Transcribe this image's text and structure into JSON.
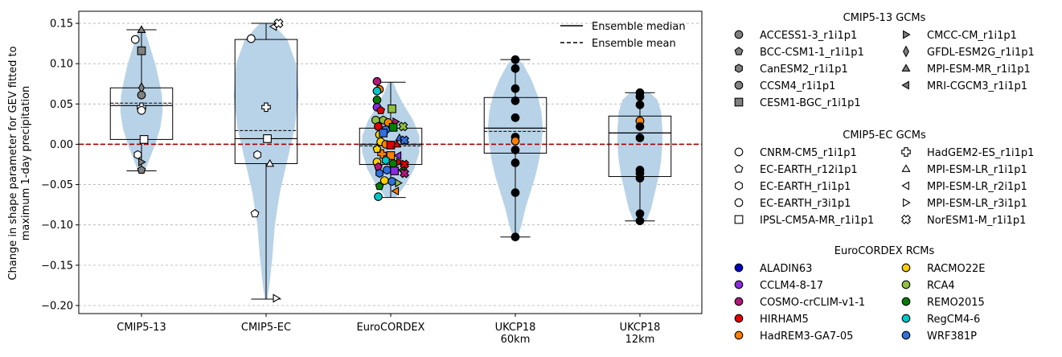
{
  "chart_data": {
    "type": "violin",
    "ylabel_line1": "Change in shape parameter for GEV fitted to",
    "ylabel_line2": "maximum 1-day precipitation",
    "ylim": [
      -0.21,
      0.165
    ],
    "yticks": [
      -0.2,
      -0.15,
      -0.1,
      -0.05,
      0.0,
      0.05,
      0.1,
      0.15
    ],
    "ytick_labels": [
      "−0.20",
      "−0.15",
      "−0.10",
      "−0.05",
      "0.00",
      "0.05",
      "0.10",
      "0.15"
    ],
    "grid": "horizontal dashed",
    "zero_line_color": "#a00000",
    "violin_color": "#b8d3e8",
    "categories": [
      "CMIP5-13",
      "CMIP5-EC",
      "EuroCORDEX",
      "UKCP18 60km",
      "UKCP18 12km"
    ],
    "category_label_lines": [
      [
        "CMIP5-13"
      ],
      [
        "CMIP5-EC"
      ],
      [
        "EuroCORDEX"
      ],
      [
        "UKCP18",
        "60km"
      ],
      [
        "UKCP18",
        "12km"
      ]
    ],
    "boxes": [
      {
        "whisker_low": -0.033,
        "q1": 0.006,
        "median": 0.048,
        "mean": 0.051,
        "q3": 0.07,
        "whisker_high": 0.142
      },
      {
        "whisker_low": -0.192,
        "q1": -0.024,
        "median": 0.007,
        "mean": 0.017,
        "q3": 0.13,
        "whisker_high": 0.15
      },
      {
        "whisker_low": -0.066,
        "q1": -0.025,
        "median": 0.0,
        "mean": -0.002,
        "q3": 0.02,
        "whisker_high": 0.077
      },
      {
        "whisker_low": -0.115,
        "q1": -0.011,
        "median": 0.02,
        "mean": 0.016,
        "q3": 0.058,
        "whisker_high": 0.105
      },
      {
        "whisker_low": -0.095,
        "q1": -0.04,
        "median": 0.014,
        "mean": 0.014,
        "q3": 0.035,
        "whisker_high": 0.064
      }
    ],
    "violins": [
      {
        "y": [
          -0.034,
          -0.02,
          0.0,
          0.02,
          0.04,
          0.06,
          0.08,
          0.1,
          0.12,
          0.142
        ],
        "width": [
          0.05,
          0.12,
          0.22,
          0.3,
          0.34,
          0.33,
          0.28,
          0.22,
          0.14,
          0.05
        ]
      },
      {
        "y": [
          -0.192,
          -0.17,
          -0.14,
          -0.1,
          -0.06,
          -0.02,
          0.02,
          0.06,
          0.1,
          0.13,
          0.15
        ],
        "width": [
          0.02,
          0.06,
          0.1,
          0.14,
          0.22,
          0.34,
          0.46,
          0.52,
          0.48,
          0.34,
          0.1
        ]
      },
      {
        "y": [
          -0.066,
          -0.05,
          -0.03,
          -0.01,
          0.01,
          0.03,
          0.05,
          0.065,
          0.077
        ],
        "width": [
          0.08,
          0.24,
          0.38,
          0.46,
          0.46,
          0.36,
          0.2,
          0.1,
          0.04
        ]
      },
      {
        "y": [
          -0.115,
          -0.1,
          -0.08,
          -0.06,
          -0.04,
          -0.02,
          0.0,
          0.02,
          0.04,
          0.06,
          0.08,
          0.1,
          0.105
        ],
        "width": [
          0.04,
          0.1,
          0.16,
          0.24,
          0.32,
          0.38,
          0.42,
          0.44,
          0.42,
          0.36,
          0.26,
          0.12,
          0.05
        ]
      },
      {
        "y": [
          -0.095,
          -0.08,
          -0.06,
          -0.04,
          -0.02,
          0.0,
          0.02,
          0.04,
          0.055,
          0.064
        ],
        "width": [
          0.1,
          0.18,
          0.24,
          0.3,
          0.34,
          0.36,
          0.36,
          0.34,
          0.28,
          0.16
        ]
      }
    ],
    "points": [
      {
        "g": 0,
        "dx": -0.05,
        "y": 0.13,
        "m": "circle",
        "c": "#ffffff"
      },
      {
        "g": 0,
        "dx": 0.0,
        "y": 0.142,
        "m": "triangle-up",
        "c": "#808080"
      },
      {
        "g": 0,
        "dx": 0.0,
        "y": 0.116,
        "m": "square",
        "c": "#808080"
      },
      {
        "g": 0,
        "dx": 0.0,
        "y": 0.07,
        "m": "diamond",
        "c": "#808080"
      },
      {
        "g": 0,
        "dx": 0.0,
        "y": 0.061,
        "m": "circle",
        "c": "#808080"
      },
      {
        "g": 0,
        "dx": 0.0,
        "y": 0.046,
        "m": "plus",
        "c": "#ffffff"
      },
      {
        "g": 0,
        "dx": 0.0,
        "y": 0.042,
        "m": "circle",
        "c": "#ffffff"
      },
      {
        "g": 0,
        "dx": 0.02,
        "y": 0.006,
        "m": "square",
        "c": "#ffffff"
      },
      {
        "g": 0,
        "dx": -0.03,
        "y": -0.013,
        "m": "hexagon",
        "c": "#ffffff"
      },
      {
        "g": 0,
        "dx": 0.0,
        "y": -0.022,
        "m": "triangle-right",
        "c": "#808080"
      },
      {
        "g": 0,
        "dx": 0.0,
        "y": -0.032,
        "m": "pentagon",
        "c": "#808080"
      },
      {
        "g": 1,
        "dx": -0.12,
        "y": 0.131,
        "m": "circle",
        "c": "#ffffff"
      },
      {
        "g": 1,
        "dx": 0.06,
        "y": 0.146,
        "m": "triangle-left",
        "c": "#ffffff"
      },
      {
        "g": 1,
        "dx": 0.1,
        "y": 0.15,
        "m": "cross",
        "c": "#ffffff"
      },
      {
        "g": 1,
        "dx": 0.0,
        "y": 0.046,
        "m": "plus",
        "c": "#ffffff"
      },
      {
        "g": 1,
        "dx": 0.01,
        "y": 0.007,
        "m": "square",
        "c": "#ffffff"
      },
      {
        "g": 1,
        "dx": -0.07,
        "y": -0.013,
        "m": "hexagon",
        "c": "#ffffff"
      },
      {
        "g": 1,
        "dx": 0.03,
        "y": -0.024,
        "m": "triangle-up",
        "c": "#ffffff"
      },
      {
        "g": 1,
        "dx": -0.09,
        "y": -0.086,
        "m": "pentagon",
        "c": "#ffffff"
      },
      {
        "g": 1,
        "dx": 0.08,
        "y": -0.191,
        "m": "triangle-right",
        "c": "#ffffff"
      },
      {
        "g": 2,
        "dx": -0.11,
        "y": 0.078,
        "m": "circle",
        "c": "#b0187a"
      },
      {
        "g": 2,
        "dx": -0.09,
        "y": 0.068,
        "m": "circle",
        "c": "#ff8000"
      },
      {
        "g": 2,
        "dx": -0.11,
        "y": 0.066,
        "m": "circle",
        "c": "#00c8c8"
      },
      {
        "g": 2,
        "dx": -0.11,
        "y": 0.055,
        "m": "circle",
        "c": "#008000"
      },
      {
        "g": 2,
        "dx": -0.11,
        "y": 0.046,
        "m": "circle",
        "c": "#8a2be2"
      },
      {
        "g": 2,
        "dx": -0.08,
        "y": 0.042,
        "m": "pentagon",
        "c": "#e00000"
      },
      {
        "g": 2,
        "dx": 0.01,
        "y": 0.044,
        "m": "square",
        "c": "#90c040"
      },
      {
        "g": 2,
        "dx": -0.12,
        "y": 0.03,
        "m": "circle",
        "c": "#90c040"
      },
      {
        "g": 2,
        "dx": -0.06,
        "y": 0.03,
        "m": "hexagon",
        "c": "#90c040"
      },
      {
        "g": 2,
        "dx": -0.02,
        "y": 0.027,
        "m": "circle",
        "c": "#ff8000"
      },
      {
        "g": 2,
        "dx": 0.04,
        "y": 0.028,
        "m": "triangle-right",
        "c": "#b0187a"
      },
      {
        "g": 2,
        "dx": -0.1,
        "y": 0.022,
        "m": "circle",
        "c": "#e00000"
      },
      {
        "g": 2,
        "dx": 0.02,
        "y": 0.021,
        "m": "square",
        "c": "#008000"
      },
      {
        "g": 2,
        "dx": 0.1,
        "y": 0.022,
        "m": "cross",
        "c": "#90c040"
      },
      {
        "g": 2,
        "dx": -0.04,
        "y": 0.018,
        "m": "circle",
        "c": "#3070e0"
      },
      {
        "g": 2,
        "dx": -0.09,
        "y": 0.012,
        "m": "circle",
        "c": "#ffd000"
      },
      {
        "g": 2,
        "dx": -0.06,
        "y": 0.014,
        "m": "square",
        "c": "#3070e0"
      },
      {
        "g": 2,
        "dx": 0.07,
        "y": 0.008,
        "m": "triangle-up",
        "c": "#3070e0"
      },
      {
        "g": 2,
        "dx": 0.11,
        "y": 0.005,
        "m": "cross",
        "c": "#3070e0"
      },
      {
        "g": 2,
        "dx": -0.08,
        "y": 0.003,
        "m": "circle",
        "c": "#ffd000"
      },
      {
        "g": 2,
        "dx": -0.04,
        "y": 0.0,
        "m": "circle",
        "c": "#ff8000"
      },
      {
        "g": 2,
        "dx": 0.0,
        "y": -0.001,
        "m": "square",
        "c": "#e00000"
      },
      {
        "g": 2,
        "dx": 0.05,
        "y": 0.0,
        "m": "triangle-up",
        "c": "#e00000"
      },
      {
        "g": 2,
        "dx": -0.11,
        "y": -0.006,
        "m": "pentagon",
        "c": "#ffd000"
      },
      {
        "g": 2,
        "dx": -0.07,
        "y": -0.012,
        "m": "plus",
        "c": "#ff8000"
      },
      {
        "g": 2,
        "dx": 0.0,
        "y": -0.014,
        "m": "square",
        "c": "#ff8000"
      },
      {
        "g": 2,
        "dx": 0.06,
        "y": -0.014,
        "m": "triangle-left",
        "c": "#8a2be2"
      },
      {
        "g": 2,
        "dx": -0.11,
        "y": -0.022,
        "m": "circle",
        "c": "#ffd000"
      },
      {
        "g": 2,
        "dx": -0.04,
        "y": -0.02,
        "m": "hexagon",
        "c": "#00c8c8"
      },
      {
        "g": 2,
        "dx": 0.02,
        "y": -0.024,
        "m": "circle",
        "c": "#008000"
      },
      {
        "g": 2,
        "dx": 0.07,
        "y": -0.022,
        "m": "triangle-right",
        "c": "#e00000"
      },
      {
        "g": 2,
        "dx": 0.11,
        "y": -0.025,
        "m": "cross",
        "c": "#e00000"
      },
      {
        "g": 2,
        "dx": -0.1,
        "y": -0.028,
        "m": "pentagon",
        "c": "#b0187a"
      },
      {
        "g": 2,
        "dx": -0.03,
        "y": -0.032,
        "m": "circle",
        "c": "#3070e0"
      },
      {
        "g": 2,
        "dx": 0.03,
        "y": -0.033,
        "m": "square",
        "c": "#8a2be2"
      },
      {
        "g": 2,
        "dx": 0.09,
        "y": -0.032,
        "m": "triangle-left",
        "c": "#008000"
      },
      {
        "g": 2,
        "dx": 0.11,
        "y": -0.036,
        "m": "cross",
        "c": "#b0187a"
      },
      {
        "g": 2,
        "dx": -0.09,
        "y": -0.036,
        "m": "hexagon",
        "c": "#3070e0"
      },
      {
        "g": 2,
        "dx": -0.05,
        "y": -0.045,
        "m": "circle",
        "c": "#ffd000"
      },
      {
        "g": 2,
        "dx": 0.01,
        "y": -0.046,
        "m": "circle",
        "c": "#3070e0"
      },
      {
        "g": 2,
        "dx": 0.06,
        "y": -0.048,
        "m": "triangle-right",
        "c": "#90c040"
      },
      {
        "g": 2,
        "dx": -0.09,
        "y": -0.052,
        "m": "pentagon",
        "c": "#008000"
      },
      {
        "g": 2,
        "dx": 0.04,
        "y": -0.058,
        "m": "triangle-left",
        "c": "#ff8000"
      },
      {
        "g": 2,
        "dx": -0.1,
        "y": -0.065,
        "m": "circle",
        "c": "#00c8c8"
      },
      {
        "g": 3,
        "dx": 0.0,
        "y": 0.105,
        "m": "circle",
        "c": "#000000"
      },
      {
        "g": 3,
        "dx": 0.0,
        "y": 0.094,
        "m": "circle",
        "c": "#000000"
      },
      {
        "g": 3,
        "dx": 0.0,
        "y": 0.069,
        "m": "circle",
        "c": "#000000"
      },
      {
        "g": 3,
        "dx": 0.0,
        "y": 0.054,
        "m": "circle",
        "c": "#000000"
      },
      {
        "g": 3,
        "dx": 0.0,
        "y": 0.033,
        "m": "circle",
        "c": "#000000"
      },
      {
        "g": 3,
        "dx": 0.0,
        "y": 0.009,
        "m": "circle",
        "c": "#000000"
      },
      {
        "g": 3,
        "dx": 0.0,
        "y": 0.004,
        "m": "circle",
        "c": "#ff8000"
      },
      {
        "g": 3,
        "dx": 0.0,
        "y": -0.007,
        "m": "circle",
        "c": "#000000"
      },
      {
        "g": 3,
        "dx": 0.0,
        "y": -0.023,
        "m": "circle",
        "c": "#000000"
      },
      {
        "g": 3,
        "dx": 0.0,
        "y": -0.06,
        "m": "circle",
        "c": "#000000"
      },
      {
        "g": 3,
        "dx": 0.0,
        "y": -0.115,
        "m": "circle",
        "c": "#000000"
      },
      {
        "g": 4,
        "dx": 0.0,
        "y": 0.064,
        "m": "circle",
        "c": "#000000"
      },
      {
        "g": 4,
        "dx": 0.0,
        "y": 0.059,
        "m": "circle",
        "c": "#000000"
      },
      {
        "g": 4,
        "dx": 0.0,
        "y": 0.049,
        "m": "circle",
        "c": "#000000"
      },
      {
        "g": 4,
        "dx": 0.0,
        "y": 0.029,
        "m": "circle",
        "c": "#000000"
      },
      {
        "g": 4,
        "dx": 0.0,
        "y": 0.029,
        "m": "circle",
        "c": "#ff8000"
      },
      {
        "g": 4,
        "dx": 0.0,
        "y": 0.022,
        "m": "circle",
        "c": "#000000"
      },
      {
        "g": 4,
        "dx": 0.0,
        "y": 0.008,
        "m": "circle",
        "c": "#000000"
      },
      {
        "g": 4,
        "dx": 0.0,
        "y": -0.032,
        "m": "circle",
        "c": "#000000"
      },
      {
        "g": 4,
        "dx": 0.0,
        "y": -0.036,
        "m": "circle",
        "c": "#000000"
      },
      {
        "g": 4,
        "dx": 0.0,
        "y": -0.042,
        "m": "circle",
        "c": "#000000"
      },
      {
        "g": 4,
        "dx": 0.0,
        "y": -0.086,
        "m": "circle",
        "c": "#000000"
      },
      {
        "g": 4,
        "dx": 0.0,
        "y": -0.095,
        "m": "circle",
        "c": "#000000"
      }
    ]
  },
  "line_legend": {
    "items": [
      {
        "label": "Ensemble median",
        "style": "solid"
      },
      {
        "label": "Ensemble mean",
        "style": "dashed"
      }
    ]
  },
  "legend": {
    "groups": [
      {
        "title": "CMIP5-13 GCMs",
        "col1": [
          {
            "label": "ACCESS1-3_r1i1p1",
            "m": "circle",
            "c": "#808080"
          },
          {
            "label": "BCC-CSM1-1_r1i1p1",
            "m": "pentagon",
            "c": "#808080"
          },
          {
            "label": "CanESM2_r1i1p1",
            "m": "hexagon",
            "c": "#808080"
          },
          {
            "label": "CCSM4_r1i1p1",
            "m": "octagon",
            "c": "#808080"
          },
          {
            "label": "CESM1-BGC_r1i1p1",
            "m": "square",
            "c": "#808080"
          }
        ],
        "col2": [
          {
            "label": "CMCC-CM_r1i1p1",
            "m": "triangle-right",
            "c": "#808080"
          },
          {
            "label": "GFDL-ESM2G_r1i1p1",
            "m": "diamond",
            "c": "#808080"
          },
          {
            "label": "MPI-ESM-MR_r1i1p1",
            "m": "triangle-up",
            "c": "#808080"
          },
          {
            "label": "MRI-CGCM3_r1i1p1",
            "m": "triangle-left",
            "c": "#808080"
          }
        ]
      },
      {
        "title": "CMIP5-EC GCMs",
        "col1": [
          {
            "label": "CNRM-CM5_r1i1p1",
            "m": "circle",
            "c": "#ffffff"
          },
          {
            "label": "EC-EARTH_r12i1p1",
            "m": "pentagon",
            "c": "#ffffff"
          },
          {
            "label": "EC-EARTH_r1i1p1",
            "m": "hexagon",
            "c": "#ffffff"
          },
          {
            "label": "EC-EARTH_r3i1p1",
            "m": "octagon",
            "c": "#ffffff"
          },
          {
            "label": "IPSL-CM5A-MR_r1i1p1",
            "m": "square",
            "c": "#ffffff"
          }
        ],
        "col2": [
          {
            "label": "HadGEM2-ES_r1i1p1",
            "m": "plus",
            "c": "#ffffff"
          },
          {
            "label": "MPI-ESM-LR_r1i1p1",
            "m": "triangle-up",
            "c": "#ffffff"
          },
          {
            "label": "MPI-ESM-LR_r2i1p1",
            "m": "triangle-left",
            "c": "#ffffff"
          },
          {
            "label": "MPI-ESM-LR_r3i1p1",
            "m": "triangle-right",
            "c": "#ffffff"
          },
          {
            "label": "NorESM1-M_r1i1p1",
            "m": "cross",
            "c": "#ffffff"
          }
        ]
      },
      {
        "title": "EuroCORDEX RCMs",
        "col1": [
          {
            "label": "ALADIN63",
            "m": "circle",
            "c": "#0000c0"
          },
          {
            "label": "CCLM4-8-17",
            "m": "circle",
            "c": "#8a2be2"
          },
          {
            "label": "COSMO-crCLIM-v1-1",
            "m": "circle",
            "c": "#b0187a"
          },
          {
            "label": "HIRHAM5",
            "m": "circle",
            "c": "#e00000"
          },
          {
            "label": "HadREM3-GA7-05",
            "m": "circle",
            "c": "#ff8000"
          }
        ],
        "col2": [
          {
            "label": "RACMO22E",
            "m": "circle",
            "c": "#ffd000"
          },
          {
            "label": "RCA4",
            "m": "circle",
            "c": "#90c040"
          },
          {
            "label": "REMO2015",
            "m": "circle",
            "c": "#008000"
          },
          {
            "label": "RegCM4-6",
            "m": "circle",
            "c": "#00c8c8"
          },
          {
            "label": "WRF381P",
            "m": "circle",
            "c": "#3070e0"
          }
        ]
      }
    ]
  }
}
